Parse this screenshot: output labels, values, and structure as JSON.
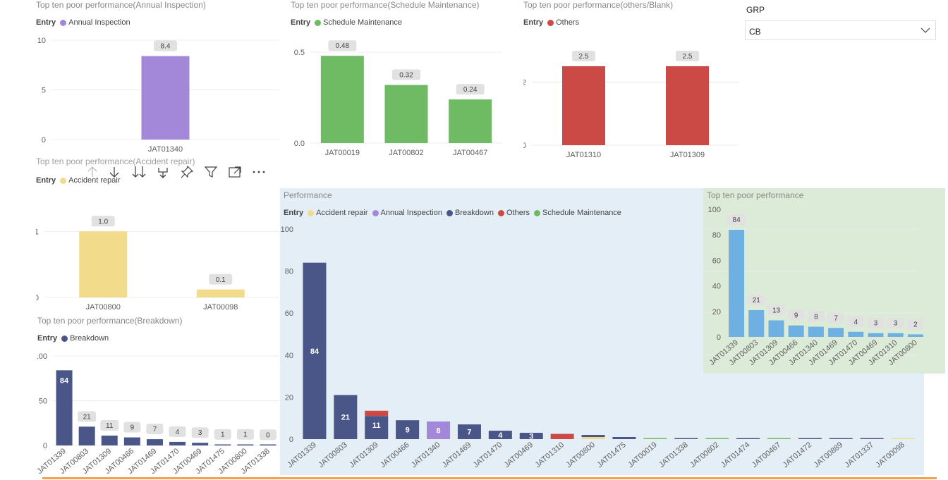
{
  "slicer": {
    "title": "GRP",
    "value": "CB"
  },
  "toolbar": {
    "icons": [
      "drill-up-icon",
      "drill-down-icon",
      "expand-all-icon",
      "expand-next-level-icon",
      "pin-icon",
      "filter-icon",
      "focus-mode-icon",
      "more-options-icon"
    ]
  },
  "colors": {
    "accident": "#f2dc8c",
    "annual": "#a387d9",
    "breakdown": "#4a5688",
    "others": "#cc4a46",
    "schedule": "#6fbb63",
    "generic": "#6fb0e2",
    "performance_bg": "#e3eef7",
    "top10_bg": "#dcebd8",
    "orange_line": "#f7a04b"
  },
  "charts": {
    "annual": {
      "title": "Top ten poor performance(Annual Inspection)",
      "legend_title": "Entry",
      "legend": [
        {
          "label": "Annual Inspection",
          "color": "#a387d9"
        }
      ]
    },
    "schedule": {
      "title": "Top ten poor performance(Schedule Maintenance)",
      "legend_title": "Entry",
      "legend": [
        {
          "label": "Schedule Maintenance",
          "color": "#6fbb63"
        }
      ]
    },
    "others": {
      "title": "Top ten poor performance(others/Blank)",
      "legend_title": "Entry",
      "legend": [
        {
          "label": "Others",
          "color": "#cc4a46"
        }
      ]
    },
    "accident": {
      "title": "Top ten poor performance(Accident repair)",
      "legend_title": "Entry",
      "legend": [
        {
          "label": "Accident repair",
          "color": "#f2dc8c"
        }
      ]
    },
    "breakdown": {
      "title": "Top ten poor performance(Breakdown)",
      "legend_title": "Entry",
      "legend": [
        {
          "label": "Breakdown",
          "color": "#4a5688"
        }
      ]
    },
    "performance": {
      "title": "Performance",
      "legend_title": "Entry",
      "legend": [
        {
          "label": "Accident repair",
          "color": "#f2dc8c"
        },
        {
          "label": "Annual Inspection",
          "color": "#a387d9"
        },
        {
          "label": "Breakdown",
          "color": "#4a5688"
        },
        {
          "label": "Others",
          "color": "#cc4a46"
        },
        {
          "label": "Schedule Maintenance",
          "color": "#6fbb63"
        }
      ]
    },
    "top10": {
      "title": "Top ten poor performance"
    }
  },
  "chart_data": [
    {
      "id": "annual",
      "type": "bar",
      "categories": [
        "JAT01340"
      ],
      "values": [
        8.4
      ],
      "labels": [
        "8.4"
      ],
      "yticks": [
        0,
        5,
        10
      ],
      "ylim": [
        0,
        10
      ],
      "color": "#a387d9",
      "grid": true
    },
    {
      "id": "schedule",
      "type": "bar",
      "categories": [
        "JAT00019",
        "JAT00802",
        "JAT00467"
      ],
      "values": [
        0.48,
        0.32,
        0.24
      ],
      "labels": [
        "0.48",
        "0.32",
        "0.24"
      ],
      "yticks": [
        0.0,
        0.5
      ],
      "ytick_labels": [
        "0.0",
        "0.5"
      ],
      "ylim": [
        0,
        0.57
      ],
      "color": "#6fbb63",
      "grid": true
    },
    {
      "id": "others",
      "type": "bar",
      "categories": [
        "JAT01310",
        "JAT01309"
      ],
      "values": [
        2.5,
        2.5
      ],
      "labels": [
        "2.5",
        "2.5"
      ],
      "yticks": [
        0,
        2
      ],
      "ylim": [
        0,
        2.9
      ],
      "color": "#cc4a46",
      "grid": true
    },
    {
      "id": "accident",
      "type": "bar",
      "categories": [
        "JAT00800",
        "JAT00098"
      ],
      "values": [
        1.0,
        0.12
      ],
      "labels": [
        "1.0",
        "0.1"
      ],
      "yticks": [
        0,
        1
      ],
      "ylim": [
        0,
        1.11
      ],
      "color": "#f2dc8c",
      "grid": true
    },
    {
      "id": "breakdown",
      "type": "bar",
      "categories": [
        "JAT01339",
        "JAT00803",
        "JAT01309",
        "JAT00466",
        "JAT01469",
        "JAT01470",
        "JAT00469",
        "JAT01475",
        "JAT00800",
        "JAT01338"
      ],
      "values": [
        84,
        21,
        11,
        9,
        7,
        4,
        3,
        1,
        1,
        0.5
      ],
      "labels": [
        "84",
        "21",
        "11",
        "9",
        "7",
        "4",
        "3",
        "1",
        "1",
        "0"
      ],
      "yticks": [
        0,
        50,
        100
      ],
      "ylim": [
        0,
        100
      ],
      "color": "#4a5688",
      "grid": true
    },
    {
      "id": "performance",
      "type": "bar",
      "stacked": true,
      "categories": [
        "JAT01339",
        "JAT00803",
        "JAT01309",
        "JAT00466",
        "JAT01340",
        "JAT01469",
        "JAT01470",
        "JAT00469",
        "JAT01310",
        "JAT00800",
        "JAT01475",
        "JAT00019",
        "JAT01338",
        "JAT00802",
        "JAT01474",
        "JAT00467",
        "JAT01472",
        "JAT00889",
        "JAT01337",
        "JAT00098"
      ],
      "series": [
        {
          "name": "Accident repair",
          "color": "#f2dc8c",
          "values": [
            0,
            0,
            0,
            0,
            0,
            0,
            0,
            0,
            0,
            1,
            0,
            0,
            0,
            0,
            0,
            0,
            0,
            0,
            0,
            0.12
          ]
        },
        {
          "name": "Annual Inspection",
          "color": "#a387d9",
          "values": [
            0,
            0,
            0,
            0,
            8.4,
            0,
            0,
            0,
            0,
            0,
            0,
            0,
            0,
            0,
            0,
            0,
            0,
            0,
            0,
            0
          ]
        },
        {
          "name": "Breakdown",
          "color": "#4a5688",
          "values": [
            84,
            21,
            11,
            9,
            0,
            7,
            4,
            3,
            0,
            1,
            1,
            0,
            0.5,
            0,
            0.4,
            0,
            0.35,
            0.3,
            0.3,
            0
          ]
        },
        {
          "name": "Others",
          "color": "#cc4a46",
          "values": [
            0,
            0,
            2.5,
            0,
            0,
            0,
            0,
            0,
            2.5,
            0,
            0,
            0,
            0,
            0,
            0,
            0,
            0,
            0,
            0,
            0
          ]
        },
        {
          "name": "Schedule Maintenance",
          "color": "#6fbb63",
          "values": [
            0,
            0,
            0,
            0,
            0,
            0,
            0,
            0,
            0,
            0,
            0,
            0.48,
            0,
            0.32,
            0,
            0.24,
            0,
            0,
            0,
            0
          ]
        }
      ],
      "labels": [
        "84",
        "21",
        "11",
        "9",
        "8",
        "7",
        "4",
        "3",
        "",
        "",
        "",
        "",
        "",
        "",
        "",
        "",
        "",
        "",
        "",
        ""
      ],
      "yticks": [
        0,
        20,
        40,
        60,
        80,
        100
      ],
      "ylim": [
        0,
        100
      ]
    },
    {
      "id": "top10",
      "type": "bar",
      "categories": [
        "JAT01339",
        "JAT00803",
        "JAT01309",
        "JAT00466",
        "JAT01340",
        "JAT01469",
        "JAT01470",
        "JAT00469",
        "JAT01310",
        "JAT00800"
      ],
      "values": [
        84,
        21,
        13,
        9,
        8,
        7,
        4,
        3,
        3,
        2
      ],
      "labels": [
        "84",
        "21",
        "13",
        "9",
        "8",
        "7",
        "4",
        "3",
        "3",
        "2"
      ],
      "yticks": [
        0,
        20,
        40,
        60,
        80,
        100
      ],
      "ylim": [
        0,
        100
      ],
      "color": "#6fb0e2",
      "grid": false
    }
  ]
}
